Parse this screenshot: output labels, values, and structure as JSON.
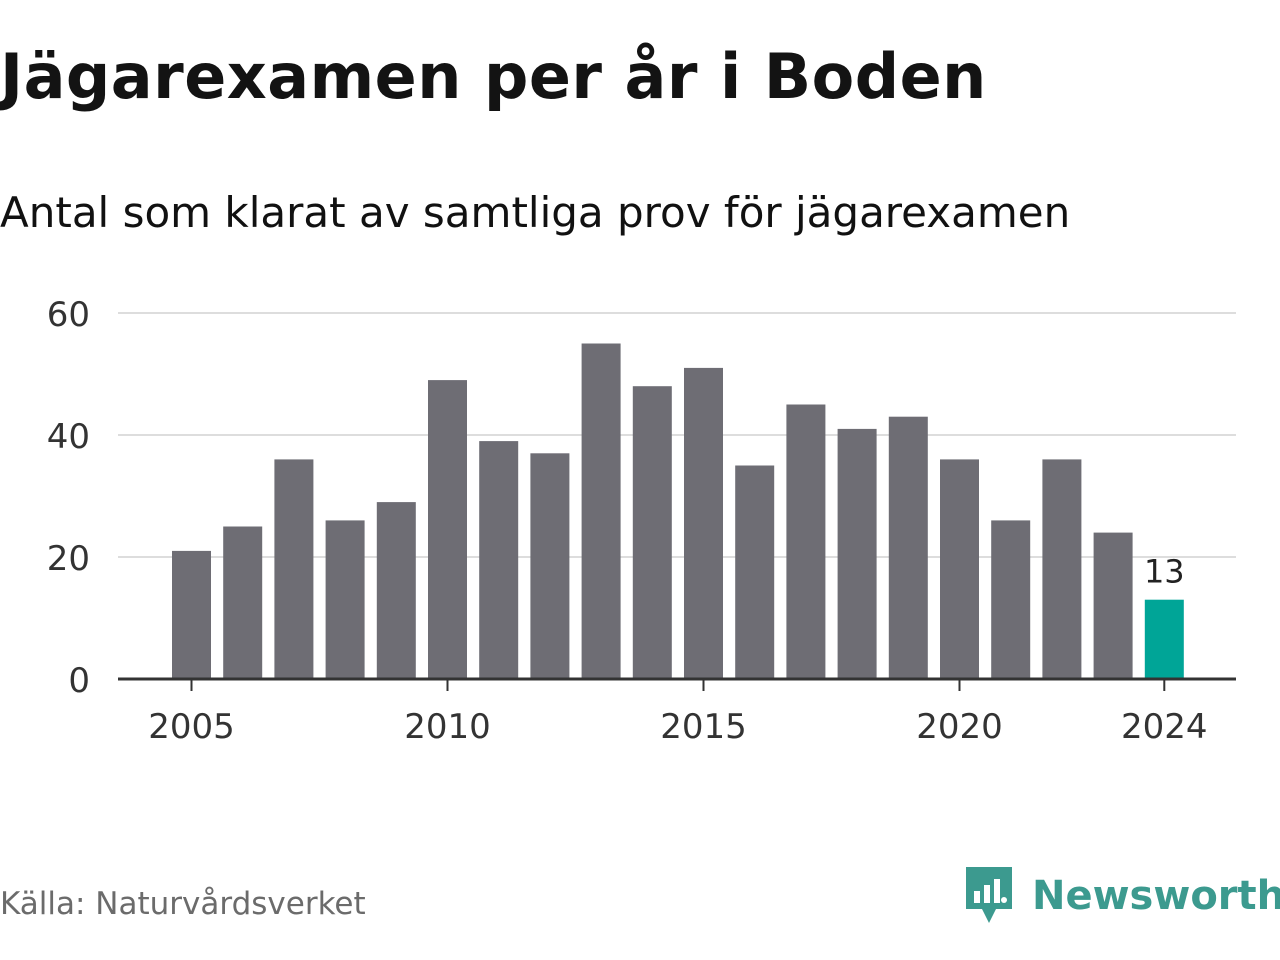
{
  "header": {
    "title": "Jägarexamen per år i Boden",
    "subtitle": "Antal som klarat av samtliga prov för jägarexamen"
  },
  "footer": {
    "source": "Källa: Naturvårdsverket",
    "brand": "Newsworthy",
    "brand_icon": "newsworthy-logo-icon"
  },
  "colors": {
    "bar": "#6e6d74",
    "highlight": "#00a597",
    "grid": "#dddddd",
    "axis": "#333333",
    "brand": "#3c9a8f"
  },
  "chart_data": {
    "type": "bar",
    "x": [
      2005,
      2006,
      2007,
      2008,
      2009,
      2010,
      2011,
      2012,
      2013,
      2014,
      2015,
      2016,
      2017,
      2018,
      2019,
      2020,
      2021,
      2022,
      2023,
      2024
    ],
    "values": [
      21,
      25,
      36,
      26,
      29,
      49,
      39,
      37,
      55,
      48,
      51,
      35,
      45,
      41,
      43,
      36,
      26,
      36,
      24,
      13
    ],
    "highlight_index": 19,
    "highlight_label": "13",
    "ylim": [
      0,
      60
    ],
    "yticks": [
      0,
      20,
      40,
      60
    ],
    "xticks": [
      2005,
      2010,
      2015,
      2020,
      2024
    ],
    "grid": true,
    "xlabel": "",
    "ylabel": ""
  }
}
